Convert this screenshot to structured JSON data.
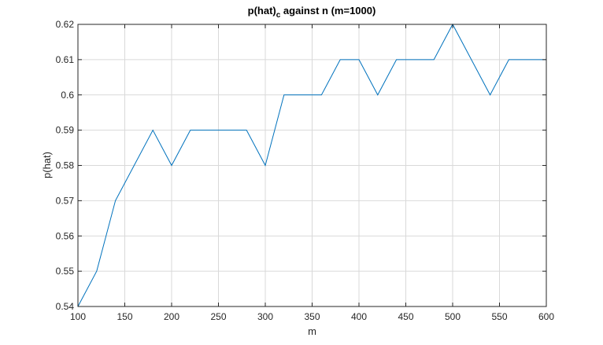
{
  "chart_data": {
    "type": "line",
    "title": "p(hat)",
    "title_subscript": "c",
    "title_suffix": " against n (m=1000)",
    "xlabel": "m",
    "ylabel": "p(hat)",
    "xlim": [
      100,
      600
    ],
    "ylim": [
      0.54,
      0.62
    ],
    "xticks": [
      100,
      150,
      200,
      250,
      300,
      350,
      400,
      450,
      500,
      550,
      600
    ],
    "xtick_labels": [
      "100",
      "150",
      "200",
      "250",
      "300",
      "350",
      "400",
      "450",
      "500",
      "550",
      "600"
    ],
    "yticks": [
      0.54,
      0.55,
      0.56,
      0.57,
      0.58,
      0.59,
      0.6,
      0.61,
      0.62
    ],
    "ytick_labels": [
      "0.54",
      "0.55",
      "0.56",
      "0.57",
      "0.58",
      "0.59",
      "0.6",
      "0.61",
      "0.62"
    ],
    "grid": true,
    "color": "#0072BD",
    "x": [
      100,
      120,
      140,
      160,
      180,
      200,
      220,
      240,
      260,
      280,
      300,
      320,
      340,
      360,
      380,
      400,
      420,
      440,
      460,
      480,
      500,
      520,
      540,
      560,
      580,
      600
    ],
    "y": [
      0.54,
      0.55,
      0.57,
      0.58,
      0.59,
      0.58,
      0.59,
      0.59,
      0.59,
      0.59,
      0.58,
      0.6,
      0.6,
      0.6,
      0.61,
      0.61,
      0.6,
      0.61,
      0.61,
      0.61,
      0.62,
      0.61,
      0.6,
      0.61,
      0.61,
      0.61
    ]
  }
}
